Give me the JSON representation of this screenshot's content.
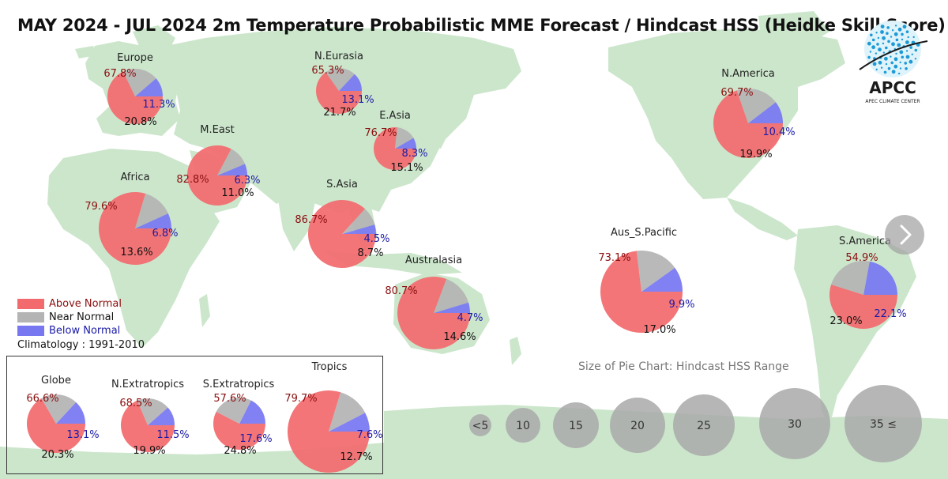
{
  "title": "MAY 2024 - JUL 2024 2m Temperature Probabilistic MME Forecast / Hindcast HSS (Heidke Skill Score)",
  "legend": {
    "above": "Above Normal",
    "near": "Near Normal",
    "below": "Below Normal",
    "climatology": "Climatology : 1991-2010"
  },
  "colors": {
    "above": "#f26a6e",
    "near": "#b4b4b4",
    "below": "#7777f2",
    "above_text": "#8b0f0f",
    "below_text": "#1a1aa8",
    "land": "#cce6cc",
    "size_bubble": "#a9a9a9"
  },
  "size_legend": {
    "caption": "Size of Pie Chart: Hindcast HSS Range",
    "labels": [
      "<5",
      "10",
      "15",
      "20",
      "25",
      "30",
      "35 ≤"
    ]
  },
  "logo": {
    "text": "APCC",
    "subtext": "APEC CLIMATE CENTER"
  },
  "nav": {
    "next_icon": "chevron-right-icon"
  },
  "chart_data": {
    "type": "pie",
    "series_order": [
      "above",
      "near",
      "below"
    ],
    "regions": [
      {
        "name": "Europe",
        "above": 67.8,
        "near": 20.8,
        "below": 11.3
      },
      {
        "name": "N.Eurasia",
        "above": 65.3,
        "near": 21.7,
        "below": 13.1
      },
      {
        "name": "E.Asia",
        "above": 76.7,
        "near": 15.1,
        "below": 8.3
      },
      {
        "name": "M.East",
        "above": 82.8,
        "near": 11.0,
        "below": 6.3
      },
      {
        "name": "Africa",
        "above": 79.6,
        "near": 13.6,
        "below": 6.8
      },
      {
        "name": "S.Asia",
        "above": 86.7,
        "near": 8.7,
        "below": 4.5
      },
      {
        "name": "Australasia",
        "above": 80.7,
        "near": 14.6,
        "below": 4.7
      },
      {
        "name": "Aus_S.Pacific",
        "above": 73.1,
        "near": 17.0,
        "below": 9.9
      },
      {
        "name": "N.America",
        "above": 69.7,
        "near": 19.9,
        "below": 10.4
      },
      {
        "name": "S.America",
        "above": 54.9,
        "near": 23.0,
        "below": 22.1
      },
      {
        "name": "Globe",
        "above": 66.6,
        "near": 20.3,
        "below": 13.1
      },
      {
        "name": "N.Extratropics",
        "above": 68.5,
        "near": 19.9,
        "below": 11.5
      },
      {
        "name": "S.Extratropics",
        "above": 57.6,
        "near": 24.8,
        "below": 17.6
      },
      {
        "name": "Tropics",
        "above": 79.7,
        "near": 12.7,
        "below": 7.6
      }
    ]
  }
}
